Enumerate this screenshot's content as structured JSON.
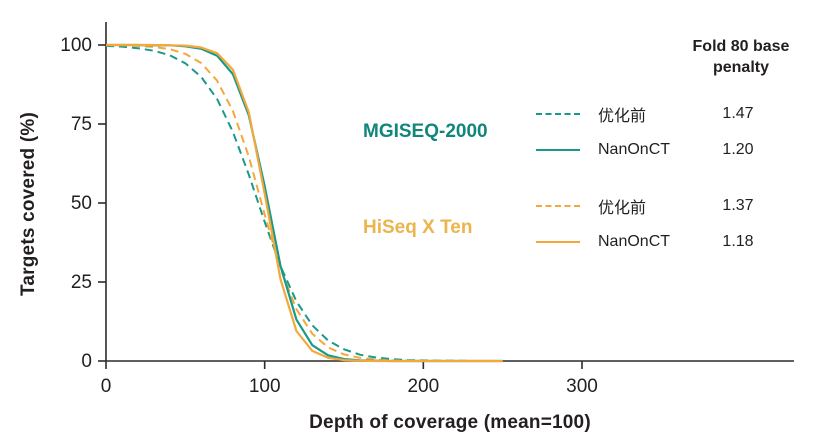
{
  "chart_data": {
    "type": "line",
    "title": "",
    "xlabel": "Depth of coverage (mean=100)",
    "ylabel": "Targets covered (%)",
    "xlim": [
      0,
      434
    ],
    "ylim": [
      0,
      100
    ],
    "xticks": [
      0,
      100,
      200,
      300
    ],
    "yticks": [
      0,
      25,
      50,
      75,
      100
    ],
    "grid": false,
    "legend_position": "right",
    "x": [
      0,
      10,
      20,
      30,
      40,
      50,
      60,
      70,
      80,
      90,
      100,
      110,
      120,
      130,
      140,
      150,
      160,
      170,
      180,
      190,
      200,
      210,
      220,
      230,
      240,
      250
    ],
    "series": [
      {
        "name": "MGISEQ-2000 优化前",
        "group": "MGISEQ-2000",
        "style": "dashed",
        "color": "#179a8a",
        "values": [
          99.7,
          99.5,
          99.0,
          98.2,
          96.8,
          94.2,
          89.9,
          82.9,
          72.5,
          59.0,
          44.0,
          30.0,
          18.9,
          11.3,
          6.5,
          3.7,
          2.0,
          1.1,
          0.6,
          0.3,
          0.2,
          0.1,
          0.1,
          0.0,
          0.0,
          0.0
        ]
      },
      {
        "name": "HiSeq X Ten 优化前",
        "group": "HiSeq X Ten",
        "style": "dashed",
        "color": "#f4a83c",
        "values": [
          99.9,
          99.9,
          99.7,
          99.4,
          98.7,
          97.2,
          94.3,
          88.7,
          79.1,
          64.7,
          46.3,
          29.2,
          16.4,
          8.6,
          4.3,
          2.1,
          1.0,
          0.5,
          0.2,
          0.1,
          0.1,
          0.0,
          0.0,
          0.0,
          0.0,
          0.0
        ]
      },
      {
        "name": "MGISEQ-2000 NanOnCT",
        "group": "MGISEQ-2000",
        "style": "solid",
        "color": "#179a8a",
        "values": [
          100.0,
          100.0,
          100.0,
          99.9,
          99.9,
          99.6,
          98.8,
          96.6,
          90.8,
          77.8,
          55.3,
          30.1,
          13.1,
          5.0,
          1.8,
          0.6,
          0.2,
          0.1,
          0.0,
          0.0,
          0.0,
          0.0,
          0.0,
          0.0,
          0.0,
          0.0
        ]
      },
      {
        "name": "HiSeq X Ten NanOnCT",
        "group": "HiSeq X Ten",
        "style": "solid",
        "color": "#f4a83c",
        "values": [
          100.0,
          100.0,
          100.0,
          100.0,
          99.9,
          99.8,
          99.2,
          97.4,
          92.2,
          78.7,
          52.9,
          25.9,
          9.5,
          3.2,
          1.0,
          0.3,
          0.1,
          0.0,
          0.0,
          0.0,
          0.0,
          0.0,
          0.0,
          0.0,
          0.0,
          0.0
        ]
      }
    ]
  },
  "axes": {
    "x_title": "Depth of coverage (mean=100)",
    "y_title": "Targets covered (%)"
  },
  "legend": {
    "header": "Fold 80 base penalty",
    "groups": [
      {
        "label": "MGISEQ-2000",
        "color": "#11867c",
        "rows": [
          {
            "label": "优化前",
            "value": "1.47",
            "style": "dashed"
          },
          {
            "label": "NanOnCT",
            "value": "1.20",
            "style": "solid"
          }
        ]
      },
      {
        "label": "HiSeq X Ten",
        "color": "#ecb44c",
        "rows": [
          {
            "label": "优化前",
            "value": "1.37",
            "style": "dashed"
          },
          {
            "label": "NanOnCT",
            "value": "1.18",
            "style": "solid"
          }
        ]
      }
    ]
  },
  "colors": {
    "teal_line": "#179a8a",
    "orange_line": "#f4a83c",
    "teal_label": "#11867c",
    "orange_label": "#ecb44c",
    "axis": "#2b2b2b",
    "text": "#231f20",
    "background": "#ffffff"
  }
}
